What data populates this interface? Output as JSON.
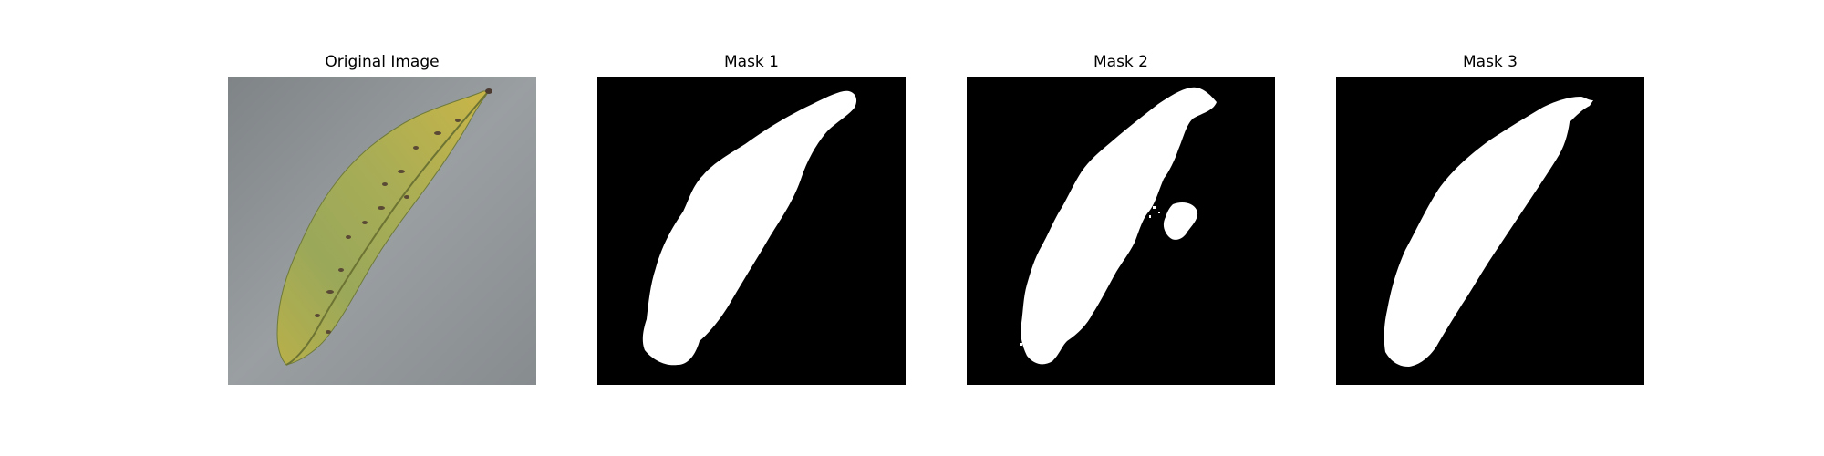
{
  "figure": {
    "panels": [
      {
        "title": "Original Image"
      },
      {
        "title": "Mask 1"
      },
      {
        "title": "Mask 2"
      },
      {
        "title": "Mask 3"
      }
    ]
  },
  "colors": {
    "background": "#ffffff",
    "mask_background": "#000000",
    "mask_foreground": "#ffffff",
    "surface_gray": "#8e9397",
    "leaf_green": "#9aa85a",
    "leaf_yellow": "#c4b54a",
    "leaf_spot": "#5a4a35"
  }
}
